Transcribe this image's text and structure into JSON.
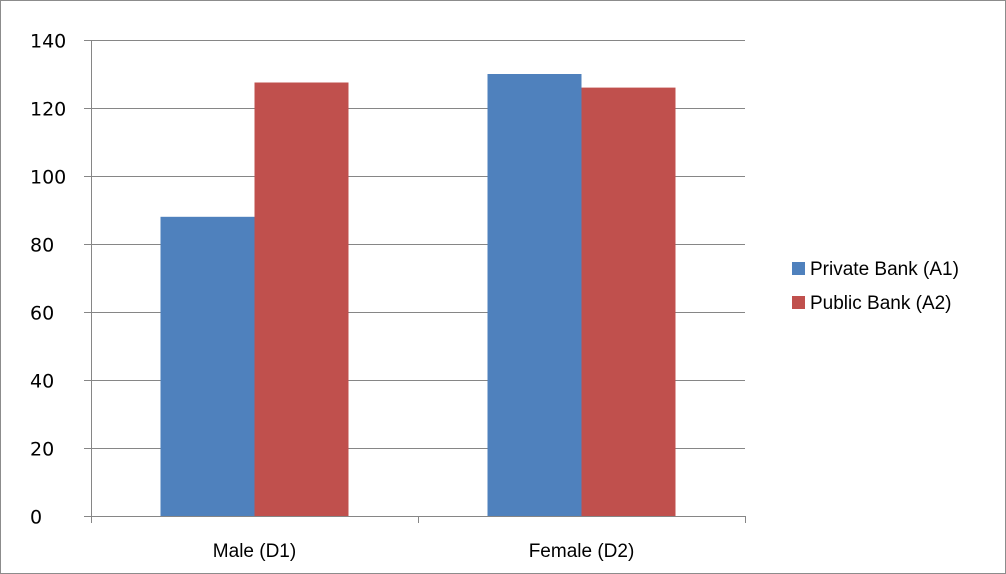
{
  "chart_data": {
    "type": "bar",
    "categories": [
      "Male (D1)",
      "Female (D2)"
    ],
    "series": [
      {
        "name": "Private Bank (A1)",
        "values": [
          88,
          130
        ],
        "color": "#4F81BD"
      },
      {
        "name": "Public Bank (A2)",
        "values": [
          127.5,
          126
        ],
        "color": "#C0504D"
      }
    ],
    "ylim": [
      0,
      140
    ],
    "yticks": [
      0,
      20,
      40,
      60,
      80,
      100,
      120,
      140
    ],
    "ytick_labels": [
      "0",
      "20",
      "40",
      "60",
      "80",
      "100",
      "120",
      "140"
    ],
    "grid": "horizontal",
    "legend_position": "right",
    "title": "",
    "xlabel": "",
    "ylabel": ""
  }
}
